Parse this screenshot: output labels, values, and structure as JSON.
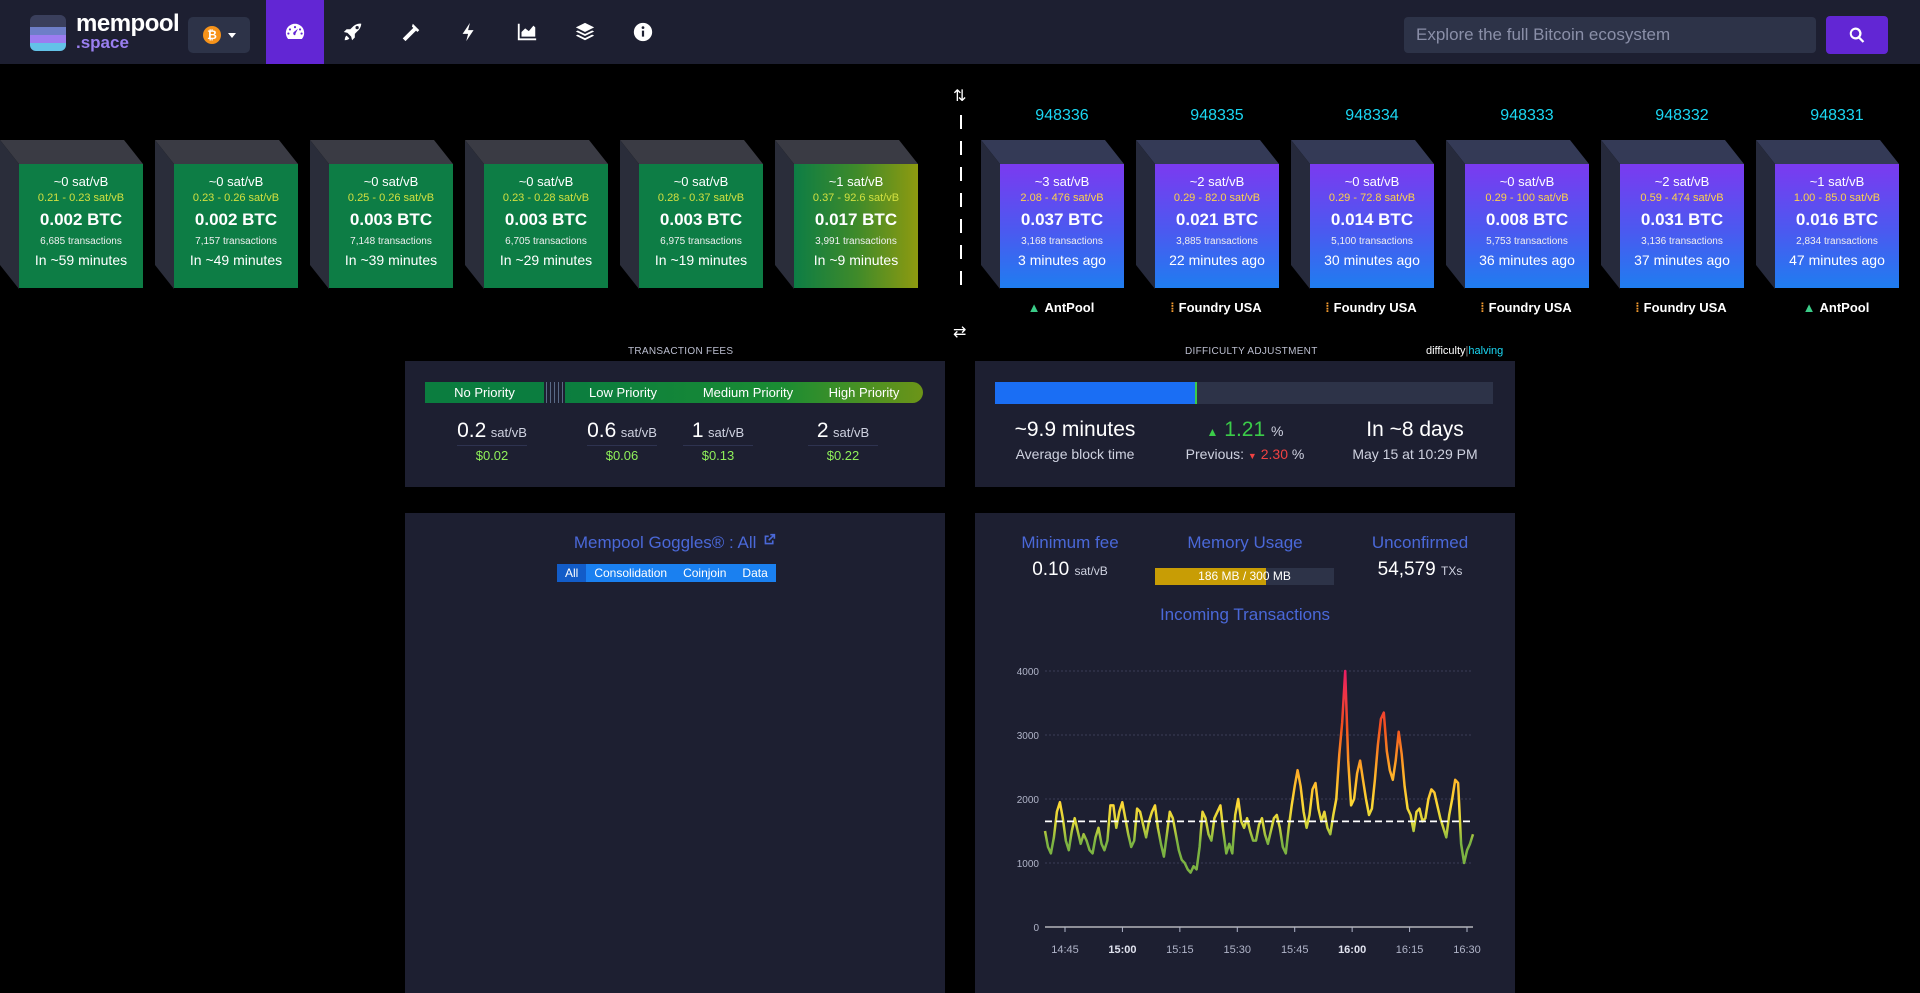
{
  "nav": {
    "logo_text": "mempool",
    "logo_sub": ".space",
    "network_icon": "bitcoin-coin",
    "items": [
      "dashboard",
      "rocket",
      "mining-pickaxe",
      "lightning",
      "graphs",
      "layers",
      "info"
    ],
    "active_item": "dashboard"
  },
  "search": {
    "placeholder": "Explore the full Bitcoin ecosystem"
  },
  "mempool_blocks": [
    {
      "fee": "~0 sat/vB",
      "range": "0.21 - 0.23 sat/vB",
      "btc": "0.002 BTC",
      "txs": "6,685 transactions",
      "time": "In ~59 minutes"
    },
    {
      "fee": "~0 sat/vB",
      "range": "0.23 - 0.26 sat/vB",
      "btc": "0.002 BTC",
      "txs": "7,157 transactions",
      "time": "In ~49 minutes"
    },
    {
      "fee": "~0 sat/vB",
      "range": "0.25 - 0.26 sat/vB",
      "btc": "0.003 BTC",
      "txs": "7,148 transactions",
      "time": "In ~39 minutes"
    },
    {
      "fee": "~0 sat/vB",
      "range": "0.23 - 0.28 sat/vB",
      "btc": "0.003 BTC",
      "txs": "6,705 transactions",
      "time": "In ~29 minutes"
    },
    {
      "fee": "~0 sat/vB",
      "range": "0.28 - 0.37 sat/vB",
      "btc": "0.003 BTC",
      "txs": "6,975 transactions",
      "time": "In ~19 minutes"
    },
    {
      "fee": "~1 sat/vB",
      "range": "0.37 - 92.6 sat/vB",
      "btc": "0.017 BTC",
      "txs": "3,991 transactions",
      "time": "In ~9 minutes"
    }
  ],
  "mined_blocks": [
    {
      "height": "948336",
      "fee": "~3 sat/vB",
      "range": "2.08 - 476 sat/vB",
      "btc": "0.037 BTC",
      "txs": "3,168 transactions",
      "time": "3 minutes ago",
      "pool": "AntPool",
      "pool_icon": "antpool-icon"
    },
    {
      "height": "948335",
      "fee": "~2 sat/vB",
      "range": "0.29 - 82.0 sat/vB",
      "btc": "0.021 BTC",
      "txs": "3,885 transactions",
      "time": "22 minutes ago",
      "pool": "Foundry USA",
      "pool_icon": "foundry-icon"
    },
    {
      "height": "948334",
      "fee": "~0 sat/vB",
      "range": "0.29 - 72.8 sat/vB",
      "btc": "0.014 BTC",
      "txs": "5,100 transactions",
      "time": "30 minutes ago",
      "pool": "Foundry USA",
      "pool_icon": "foundry-icon"
    },
    {
      "height": "948333",
      "fee": "~0 sat/vB",
      "range": "0.29 - 100 sat/vB",
      "btc": "0.008 BTC",
      "txs": "5,753 transactions",
      "time": "36 minutes ago",
      "pool": "Foundry USA",
      "pool_icon": "foundry-icon"
    },
    {
      "height": "948332",
      "fee": "~2 sat/vB",
      "range": "0.59 - 474 sat/vB",
      "btc": "0.031 BTC",
      "txs": "3,136 transactions",
      "time": "37 minutes ago",
      "pool": "Foundry USA",
      "pool_icon": "foundry-icon"
    },
    {
      "height": "948331",
      "fee": "~1 sat/vB",
      "range": "1.00 - 85.0 sat/vB",
      "btc": "0.016 BTC",
      "txs": "2,834 transactions",
      "time": "47 minutes ago",
      "pool": "AntPool",
      "pool_icon": "antpool-icon"
    }
  ],
  "fees": {
    "title": "TRANSACTION FEES",
    "labels": [
      "No Priority",
      "Low Priority",
      "Medium Priority",
      "High Priority"
    ],
    "values": [
      {
        "v": "0.2",
        "unit": "sat/vB",
        "usd": "$0.02"
      },
      {
        "v": "0.6",
        "unit": "sat/vB",
        "usd": "$0.06"
      },
      {
        "v": "1",
        "unit": "sat/vB",
        "usd": "$0.13"
      },
      {
        "v": "2",
        "unit": "sat/vB",
        "usd": "$0.22"
      }
    ]
  },
  "difficulty": {
    "title": "DIFFICULTY ADJUSTMENT",
    "toggle_a": "difficulty",
    "toggle_sep": "|",
    "toggle_b": "halving",
    "progress": 0.402,
    "avg_time": "~9.9 minutes",
    "avg_label": "Average block time",
    "change_arrow": "▲",
    "change": "1.21",
    "change_unit": "%",
    "prev_label": "Previous:",
    "prev_arrow": "▼",
    "prev": "2.30",
    "prev_unit": "%",
    "eta": "In ~8 days",
    "eta_date": "May 15 at 10:29 PM"
  },
  "goggles": {
    "title": "Mempool Goggles® : All",
    "external_icon": "external-link-icon",
    "buttons": [
      "All",
      "Consolidation",
      "Coinjoin",
      "Data"
    ],
    "active": "All"
  },
  "mempool_stats": {
    "min_fee_label": "Minimum fee",
    "min_fee": "0.10",
    "min_fee_unit": "sat/vB",
    "memory_label": "Memory Usage",
    "memory": "186 MB / 300 MB",
    "memory_fraction": 0.62,
    "unconfirmed_label": "Unconfirmed",
    "unconfirmed": "54,579",
    "unconfirmed_unit": "TXs",
    "incoming_title": "Incoming Transactions"
  },
  "chart_data": {
    "type": "line",
    "title": "Incoming Transactions",
    "ylim": [
      0,
      4000
    ],
    "yticks": [
      0,
      1000,
      2000,
      3000,
      4000
    ],
    "xticks": [
      "14:45",
      "15:00",
      "15:15",
      "15:30",
      "15:45",
      "16:00",
      "16:15",
      "16:30"
    ],
    "xticks_bold": [
      "15:00",
      "16:00"
    ],
    "x_minutes_range": [
      14.625,
      16.6
    ],
    "threshold": 1650,
    "series": [
      {
        "values": [
          1500,
          1250,
          1150,
          1400,
          1800,
          1950,
          1700,
          1350,
          1200,
          1500,
          1700,
          1500,
          1300,
          1450,
          1350,
          1200,
          1150,
          1400,
          1550,
          1300,
          1200,
          1350,
          1900,
          1900,
          1550,
          1800,
          1950,
          1700,
          1450,
          1250,
          1350,
          1850,
          1800,
          1600,
          1400,
          1650,
          1800,
          1900,
          1550,
          1300,
          1100,
          1450,
          1800,
          1700,
          1450,
          1200,
          1050,
          1000,
          900,
          850,
          950,
          900,
          1250,
          1800,
          1700,
          1450,
          1350,
          1700,
          1800,
          1900,
          1500,
          1150,
          1300,
          1150,
          1750,
          2000,
          1650,
          1550,
          1700,
          1500,
          1350,
          1350,
          1600,
          1700,
          1450,
          1300,
          1500,
          1700,
          1750,
          1550,
          1250,
          1150,
          1550,
          1900,
          2200,
          2450,
          2200,
          1800,
          1550,
          1750,
          2150,
          2250,
          1850,
          1650,
          1800,
          1550,
          1450,
          1750,
          2000,
          2700,
          3200,
          4000,
          2600,
          1900,
          2000,
          2400,
          2600,
          2300,
          2000,
          1750,
          1850,
          2300,
          2850,
          3250,
          3350,
          2750,
          2450,
          2300,
          2600,
          3050,
          2700,
          2200,
          1850,
          1750,
          1500,
          1800,
          1850,
          1650,
          1700,
          2000,
          2150,
          2100,
          1900,
          1700,
          1550,
          1400,
          1750,
          2000,
          2300,
          2250,
          1300,
          1000,
          1200,
          1300,
          1450
        ]
      }
    ]
  }
}
